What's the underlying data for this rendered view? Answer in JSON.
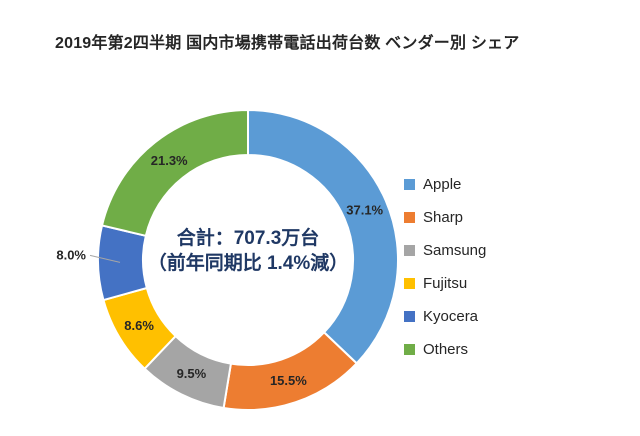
{
  "chart_data": {
    "type": "pie",
    "subtype": "donut",
    "title": "2019年第2四半期 国内市場携帯電話出荷台数 ベンダー別 シェア",
    "categories": [
      "Apple",
      "Sharp",
      "Samsung",
      "Fujitsu",
      "Kyocera",
      "Others"
    ],
    "values": [
      37.1,
      15.5,
      9.5,
      8.6,
      8.0,
      21.3
    ],
    "unit": "%",
    "percent_labels": [
      "37.1%",
      "15.5%",
      "9.5%",
      "8.6%",
      "8.0%",
      "21.3%"
    ],
    "label_outside": [
      false,
      false,
      false,
      false,
      true,
      false
    ],
    "colors": [
      "#5B9BD5",
      "#ED7D31",
      "#A5A5A5",
      "#FFC000",
      "#4472C4",
      "#70AD47"
    ],
    "start_angle_deg": 0,
    "direction": "clockwise",
    "legend_position": "right",
    "annotations": [
      "合計：707.3万台",
      "（前年同期比 1.4%減）"
    ]
  },
  "style": {
    "text_color": "#262626",
    "center_text_color": "#1F3864",
    "leader_line_color": "#A6A6A6",
    "slice_border_color": "#FFFFFF",
    "background": "#FFFFFF"
  }
}
